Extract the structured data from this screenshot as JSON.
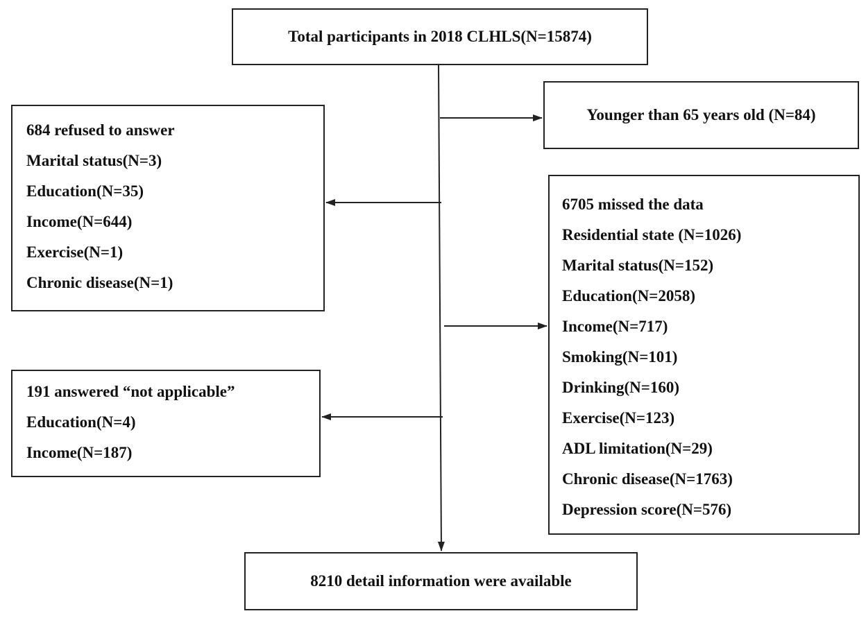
{
  "flowchart": {
    "top": "Total participants in 2018 CLHLS(N=15874)",
    "younger": "Younger than 65 years old (N=84)",
    "refused": {
      "header": "684 refused to answer",
      "items": [
        "Marital status(N=3)",
        "Education(N=35)",
        "Income(N=644)",
        "Exercise(N=1)",
        "Chronic disease(N=1)"
      ]
    },
    "missed": {
      "header": "6705 missed the data",
      "items": [
        "Residential state (N=1026)",
        "Marital status(N=152)",
        "Education(N=2058)",
        "Income(N=717)",
        "Smoking(N=101)",
        "Drinking(N=160)",
        "Exercise(N=123)",
        "ADL limitation(N=29)",
        "Chronic disease(N=1763)",
        "Depression score(N=576)"
      ]
    },
    "not_applicable": {
      "header": "191 answered “not applicable”",
      "items": [
        "Education(N=4)",
        "Income(N=187)"
      ]
    },
    "final": "8210 detail information were available"
  },
  "colors": {
    "line": "#222222",
    "background": "#ffffff"
  }
}
